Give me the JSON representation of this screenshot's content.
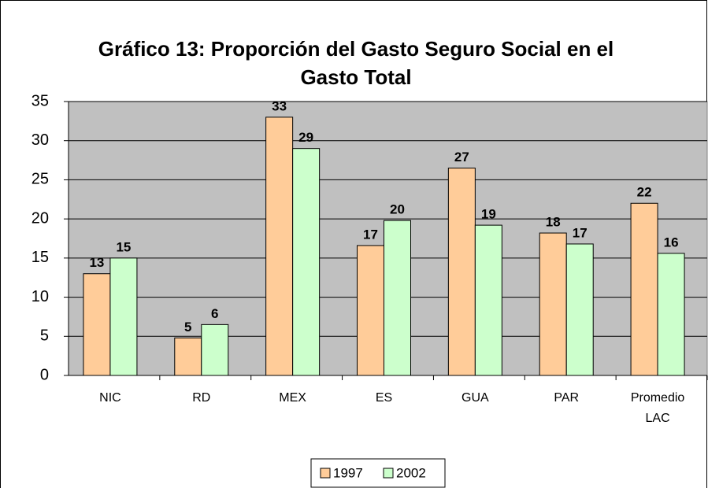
{
  "chart_data": {
    "type": "bar",
    "title": "Gráfico 13: Proporción del Gasto Seguro Social en el Gasto Total",
    "categories": [
      "NIC",
      "RD",
      "MEX",
      "ES",
      "GUA",
      "PAR",
      "Promedio LAC"
    ],
    "series": [
      {
        "name": "1997",
        "color": "#FFCC99",
        "values": [
          13,
          4.8,
          33,
          16.6,
          26.5,
          18.2,
          22
        ],
        "value_labels": [
          "13",
          "5",
          "33",
          "17",
          "27",
          "18",
          "22"
        ]
      },
      {
        "name": "2002",
        "color": "#CCFFCC",
        "values": [
          15,
          6.5,
          29,
          19.8,
          19.2,
          16.8,
          15.6
        ],
        "value_labels": [
          "15",
          "6",
          "29",
          "20",
          "19",
          "17",
          "16"
        ]
      }
    ],
    "ylim": [
      0,
      35
    ],
    "yticks": [
      0,
      5,
      10,
      15,
      20,
      25,
      30,
      35
    ],
    "grid": true,
    "plot_background": "#C0C0C0",
    "legend": "bottom"
  }
}
